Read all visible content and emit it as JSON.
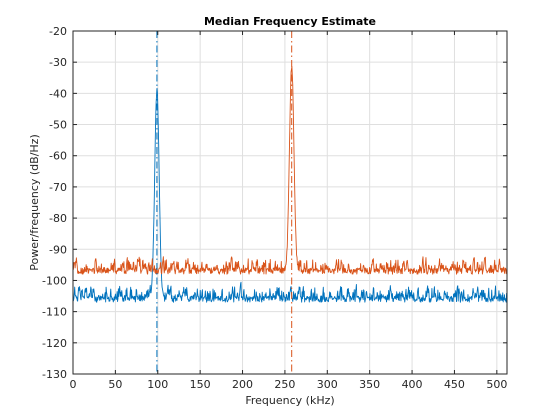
{
  "chart_data": {
    "type": "line",
    "title": "Median Frequency Estimate",
    "xlabel": "Frequency (kHz)",
    "ylabel": "Power/frequency (dB/Hz)",
    "xlim": [
      0,
      512
    ],
    "ylim": [
      -130,
      -20
    ],
    "x_ticks": [
      0,
      50,
      100,
      150,
      200,
      250,
      300,
      350,
      400,
      450,
      500
    ],
    "y_ticks": [
      -130,
      -120,
      -110,
      -100,
      -90,
      -80,
      -70,
      -60,
      -50,
      -40,
      -30,
      -20
    ],
    "grid": true,
    "legend": "none",
    "series": [
      {
        "color": "#0072bd",
        "peak_x": 99,
        "peak_y": -39,
        "noise_floor": -106,
        "median_marker_x": 99
      },
      {
        "color": "#d95319",
        "peak_x": 258,
        "peak_y": -31,
        "noise_floor": -97,
        "median_marker_x": 258
      }
    ]
  }
}
